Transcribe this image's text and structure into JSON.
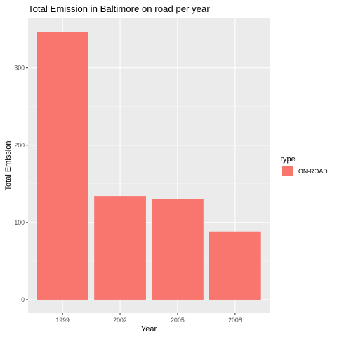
{
  "chart_data": {
    "type": "bar",
    "title": "Total Emission in Baltimore on road per year",
    "xlabel": "Year",
    "ylabel": "Total Emission",
    "categories": [
      "1999",
      "2002",
      "2005",
      "2008"
    ],
    "series": [
      {
        "name": "ON-ROAD",
        "values": [
          346.8,
          134.3,
          130.4,
          88.3
        ]
      }
    ],
    "yticks": [
      0,
      100,
      200,
      300
    ],
    "ylim": [
      -17.3,
      364.2
    ],
    "grid": true,
    "legend": {
      "title": "type",
      "position": "right"
    },
    "colors": {
      "bar": "#F8766D",
      "panel": "#EBEBEB",
      "grid_major": "#FFFFFF",
      "grid_minor": "#F5F5F5",
      "tick": "#333333"
    }
  }
}
